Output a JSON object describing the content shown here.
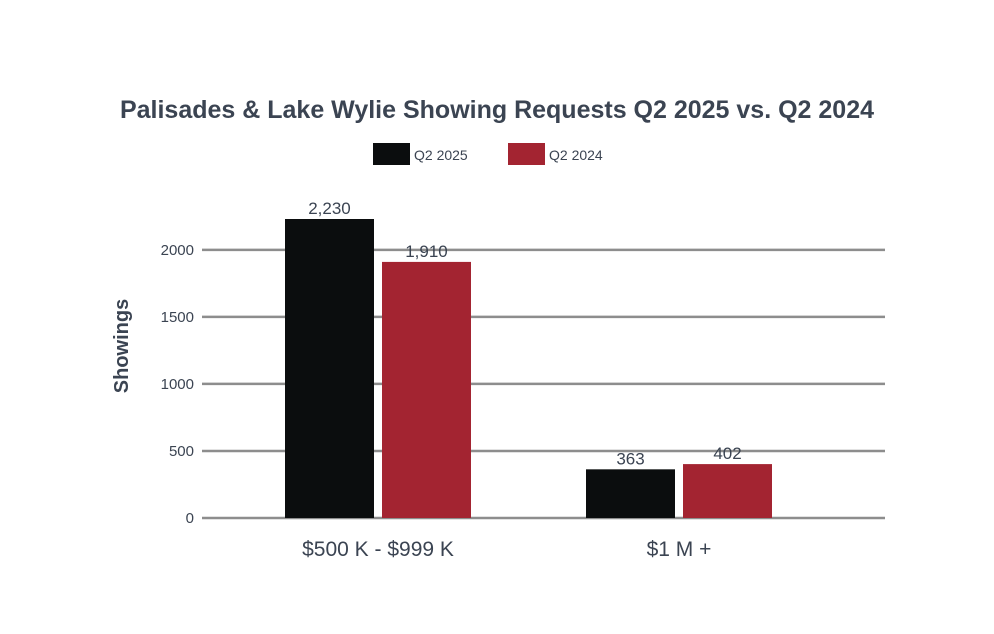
{
  "chart_data": {
    "type": "bar",
    "title": "Palisades & Lake Wylie Showing Requests Q2 2025 vs. Q2 2024",
    "xlabel": "",
    "ylabel": "Showings",
    "categories": [
      "$500 K - $999 K",
      "$1 M +"
    ],
    "series": [
      {
        "name": "Q2 2025",
        "color": "#0b0d0e",
        "values": [
          2230,
          363
        ]
      },
      {
        "name": "Q2 2024",
        "color": "#a32431",
        "values": [
          1910,
          402
        ]
      }
    ],
    "ylim": [
      0,
      2230
    ],
    "yticks": [
      0,
      500,
      1000,
      1500,
      2000
    ],
    "ytick_labels": [
      "0",
      "500",
      "1000",
      "1500",
      "2000"
    ],
    "data_labels": [
      [
        "2,230",
        "363"
      ],
      [
        "1,910",
        "402"
      ]
    ],
    "grid": true,
    "legend": "top-center"
  }
}
